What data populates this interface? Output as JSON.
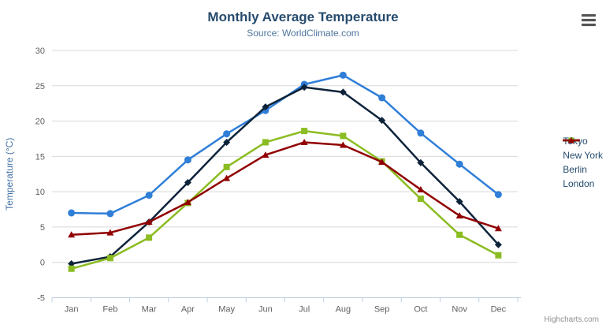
{
  "chart": {
    "title": "Monthly Average Temperature",
    "subtitle": "Source: WorldClimate.com",
    "credits": "Highcharts.com",
    "menu_icon": "hamburger-icon"
  },
  "chart_data": {
    "type": "line",
    "title": "Monthly Average Temperature",
    "subtitle": "Source: WorldClimate.com",
    "categories": [
      "Jan",
      "Feb",
      "Mar",
      "Apr",
      "May",
      "Jun",
      "Jul",
      "Aug",
      "Sep",
      "Oct",
      "Nov",
      "Dec"
    ],
    "series": [
      {
        "name": "Tokyo",
        "marker": "circle",
        "color": "#2f7ed8",
        "values": [
          7.0,
          6.9,
          9.5,
          14.5,
          18.2,
          21.5,
          25.2,
          26.5,
          23.3,
          18.3,
          13.9,
          9.6
        ]
      },
      {
        "name": "New York",
        "marker": "diamond",
        "color": "#0d233a",
        "values": [
          -0.2,
          0.8,
          5.7,
          11.3,
          17.0,
          22.0,
          24.8,
          24.1,
          20.1,
          14.1,
          8.6,
          2.5
        ]
      },
      {
        "name": "Berlin",
        "marker": "square",
        "color": "#8bbc21",
        "values": [
          -0.9,
          0.6,
          3.5,
          8.4,
          13.5,
          17.0,
          18.6,
          17.9,
          14.3,
          9.0,
          3.9,
          1.0
        ]
      },
      {
        "name": "London",
        "marker": "triangle",
        "color": "#910000",
        "values": [
          3.9,
          4.2,
          5.7,
          8.5,
          11.9,
          15.2,
          17.0,
          16.6,
          14.2,
          10.3,
          6.6,
          4.8
        ]
      }
    ],
    "xlabel": "",
    "ylabel": "Temperature (°C)",
    "ylim": [
      -5,
      30
    ],
    "ytick_step": 5,
    "grid": true,
    "legend_position": "right"
  },
  "colors": {
    "title": "#274b6d",
    "subtitle": "#4d759e",
    "axis_title": "#4572a7",
    "axis_label": "#606060",
    "grid_line": "#d8d8d8",
    "axis_line": "#c0d0e0",
    "credits": "#909090"
  }
}
